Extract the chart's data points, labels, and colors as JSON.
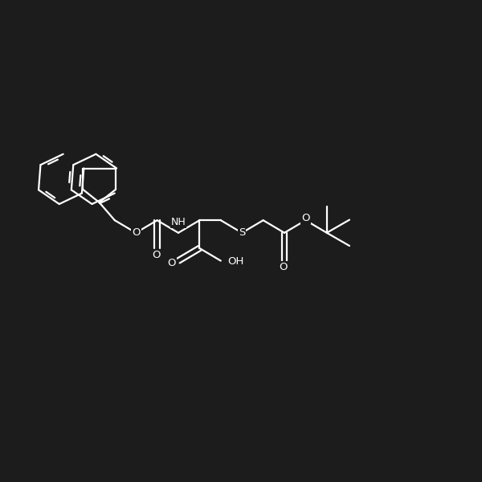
{
  "bg_color": "#1c1c1c",
  "line_color": "#ffffff",
  "line_width": 1.6,
  "font_size": 9.5,
  "fig_size": [
    6.0,
    6.0
  ],
  "dpi": 100,
  "xlim": [
    0,
    10
  ],
  "ylim": [
    2.5,
    9.0
  ]
}
